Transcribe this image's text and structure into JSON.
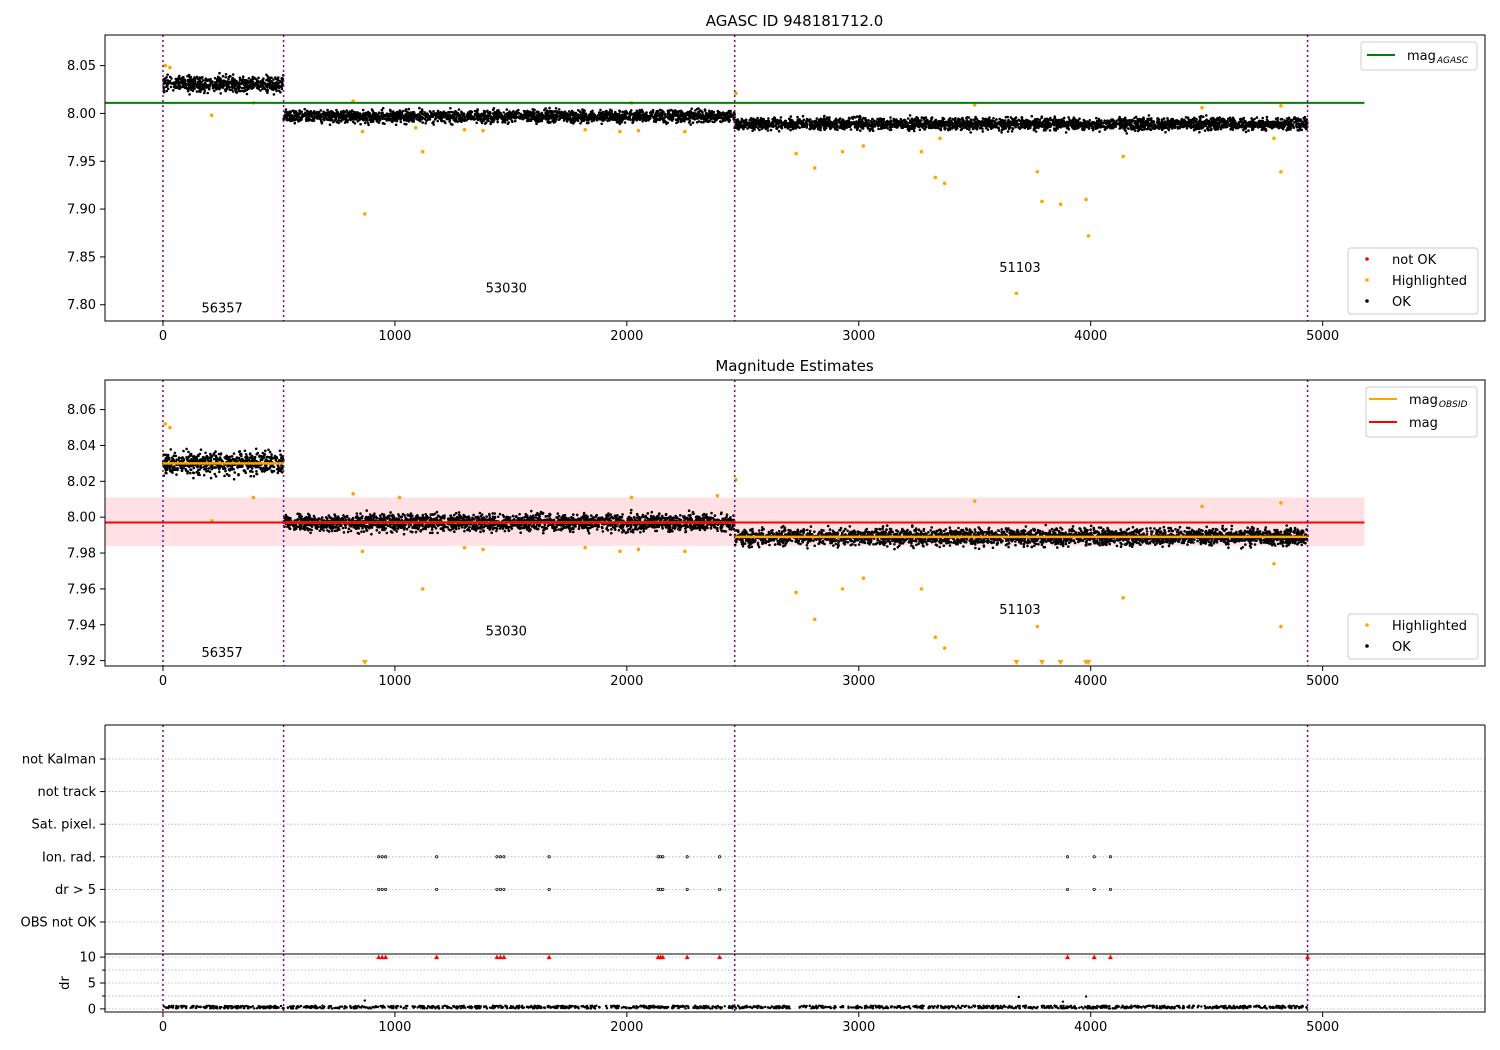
{
  "colors": {
    "ok": "#000000",
    "highlighted": "#ffa500",
    "not_ok": "#ff0000",
    "mag_agasc": "#008000",
    "mag": "#ff0000",
    "mag_obsid": "#ffa500",
    "mag_band": "#ffe0e4",
    "obsid_boundary": "#800080",
    "flag_grid": "#b0b0b0"
  },
  "obsid_boundaries": [
    0,
    520,
    2465,
    4935
  ],
  "chart_data": [
    {
      "id": "agasc",
      "type": "scatter",
      "title": "AGASC ID 948181712.0",
      "xlim": [
        -250,
        5700
      ],
      "ylim": [
        7.783,
        8.082
      ],
      "xticks": [
        0,
        1000,
        2000,
        3000,
        4000,
        5000
      ],
      "yticks": [
        7.8,
        7.85,
        7.9,
        7.95,
        8.0,
        8.05
      ],
      "ytick_labels": [
        "7.80",
        "7.85",
        "7.90",
        "7.95",
        "8.00",
        "8.05"
      ],
      "grid": false,
      "legend_upper": {
        "placement": "upper-right",
        "entries": [
          {
            "label": "mag",
            "sub": "AGASC",
            "color": "#008000",
            "kind": "line"
          }
        ]
      },
      "legend_lower": {
        "placement": "lower-right",
        "entries": [
          {
            "label": "not OK",
            "color": "#ff0000",
            "kind": "marker"
          },
          {
            "label": "Highlighted",
            "color": "#ffa500",
            "kind": "marker"
          },
          {
            "label": "OK",
            "color": "#000000",
            "kind": "marker"
          }
        ]
      },
      "reference_line": {
        "name": "mag AGASC",
        "y": 8.011,
        "x": [
          -250,
          5180
        ]
      },
      "obsid_labels": [
        {
          "text": "56357",
          "x": 255,
          "y": 7.792
        },
        {
          "text": "53030",
          "x": 1480,
          "y": 7.813
        },
        {
          "text": "51103",
          "x": 3695,
          "y": 7.834
        }
      ],
      "ok_segments": [
        {
          "x": [
            0,
            520
          ],
          "mean": 8.031,
          "spread": 0.011
        },
        {
          "x": [
            520,
            2465
          ],
          "mean": 7.997,
          "spread": 0.008
        },
        {
          "x": [
            2465,
            4935
          ],
          "mean": 7.989,
          "spread": 0.008
        }
      ],
      "highlighted_points": [
        [
          10,
          8.05
        ],
        [
          30,
          8.048
        ],
        [
          210,
          7.998
        ],
        [
          390,
          8.011
        ],
        [
          820,
          8.013
        ],
        [
          860,
          7.981
        ],
        [
          870,
          7.895
        ],
        [
          1090,
          7.985
        ],
        [
          1120,
          7.96
        ],
        [
          1300,
          7.983
        ],
        [
          1380,
          7.982
        ],
        [
          1820,
          7.983
        ],
        [
          1970,
          7.981
        ],
        [
          2020,
          8.011
        ],
        [
          2050,
          7.982
        ],
        [
          2250,
          7.981
        ],
        [
          2470,
          8.021
        ],
        [
          2730,
          7.958
        ],
        [
          2810,
          7.943
        ],
        [
          2930,
          7.96
        ],
        [
          3020,
          7.966
        ],
        [
          3270,
          7.96
        ],
        [
          3330,
          7.933
        ],
        [
          3350,
          7.974
        ],
        [
          3370,
          7.927
        ],
        [
          3500,
          8.009
        ],
        [
          3680,
          7.812
        ],
        [
          3770,
          7.939
        ],
        [
          3790,
          7.908
        ],
        [
          3870,
          7.905
        ],
        [
          3980,
          7.91
        ],
        [
          3990,
          7.872
        ],
        [
          4140,
          7.955
        ],
        [
          4480,
          8.006
        ],
        [
          4790,
          7.974
        ],
        [
          4820,
          7.939
        ],
        [
          4820,
          8.008
        ]
      ]
    },
    {
      "id": "estimates",
      "type": "scatter",
      "title": "Magnitude Estimates",
      "xlim": [
        -250,
        5700
      ],
      "ylim": [
        7.917,
        8.0765
      ],
      "xticks": [
        0,
        1000,
        2000,
        3000,
        4000,
        5000
      ],
      "yticks": [
        7.92,
        7.94,
        7.96,
        7.98,
        8.0,
        8.02,
        8.04,
        8.06
      ],
      "ytick_labels": [
        "7.92",
        "7.94",
        "7.96",
        "7.98",
        "8.00",
        "8.02",
        "8.04",
        "8.06"
      ],
      "grid": false,
      "legend_upper": {
        "placement": "upper-right",
        "entries": [
          {
            "label": "mag",
            "sub": "OBSID",
            "color": "#ffa500",
            "kind": "line"
          },
          {
            "label": "mag",
            "sub": "",
            "color": "#ff0000",
            "kind": "line"
          }
        ]
      },
      "legend_lower": {
        "placement": "lower-right",
        "entries": [
          {
            "label": "Highlighted",
            "color": "#ffa500",
            "kind": "marker"
          },
          {
            "label": "OK",
            "color": "#000000",
            "kind": "marker"
          }
        ]
      },
      "mag_line": {
        "y": 7.997,
        "band": [
          7.984,
          8.011
        ],
        "x": [
          -250,
          5180
        ]
      },
      "obsid_mean_lines": [
        {
          "x": [
            0,
            520
          ],
          "y": 8.03
        },
        {
          "x": [
            520,
            2465
          ],
          "y": 7.997
        },
        {
          "x": [
            2465,
            4935
          ],
          "y": 7.989
        }
      ],
      "obsid_labels": [
        {
          "text": "56357",
          "x": 255,
          "y": 7.922
        },
        {
          "text": "53030",
          "x": 1480,
          "y": 7.934
        },
        {
          "text": "51103",
          "x": 3695,
          "y": 7.946
        }
      ],
      "ok_segments": [
        {
          "x": [
            0,
            520
          ],
          "mean": 8.03,
          "spread": 0.008
        },
        {
          "x": [
            520,
            2465
          ],
          "mean": 7.997,
          "spread": 0.006
        },
        {
          "x": [
            2465,
            4935
          ],
          "mean": 7.989,
          "spread": 0.006
        }
      ],
      "highlighted_points": [
        [
          10,
          8.052
        ],
        [
          30,
          8.05
        ],
        [
          210,
          7.998
        ],
        [
          390,
          8.011
        ],
        [
          820,
          8.013
        ],
        [
          860,
          7.981
        ],
        [
          1020,
          8.011
        ],
        [
          1120,
          7.96
        ],
        [
          1300,
          7.983
        ],
        [
          1380,
          7.982
        ],
        [
          1820,
          7.983
        ],
        [
          1970,
          7.981
        ],
        [
          2020,
          8.011
        ],
        [
          2050,
          7.982
        ],
        [
          2250,
          7.981
        ],
        [
          2390,
          8.012
        ],
        [
          2470,
          8.021
        ],
        [
          2730,
          7.958
        ],
        [
          2810,
          7.943
        ],
        [
          2930,
          7.96
        ],
        [
          3020,
          7.966
        ],
        [
          3270,
          7.96
        ],
        [
          3330,
          7.933
        ],
        [
          3370,
          7.927
        ],
        [
          3500,
          8.009
        ],
        [
          3770,
          7.939
        ],
        [
          4140,
          7.955
        ],
        [
          4480,
          8.006
        ],
        [
          4790,
          7.974
        ],
        [
          4820,
          7.939
        ],
        [
          4820,
          8.008
        ]
      ],
      "below_axis_points_x": [
        870,
        3680,
        3790,
        3870,
        3980,
        3990
      ]
    },
    {
      "id": "flags",
      "type": "scatter",
      "xlim": [
        -250,
        5700
      ],
      "categories": [
        "not Kalman",
        "not track",
        "Sat. pixel.",
        "Ion. rad.",
        "dr > 5",
        "OBS not OK"
      ],
      "grid": true,
      "flag_points": {
        "Ion. rad.": [
          930,
          945,
          960,
          1180,
          1440,
          1455,
          1470,
          1665,
          2135,
          2145,
          2155,
          2260,
          2400,
          3900,
          4015,
          4085
        ],
        "dr > 5": [
          930,
          945,
          960,
          1180,
          1440,
          1455,
          1470,
          1665,
          2135,
          2145,
          2155,
          2260,
          2400,
          3900,
          4015,
          4085
        ]
      }
    },
    {
      "id": "dr",
      "type": "scatter",
      "xlim": [
        -250,
        5700
      ],
      "ylim": [
        -0.6,
        10.6
      ],
      "xticks": [
        0,
        1000,
        2000,
        3000,
        4000,
        5000
      ],
      "yticks": [
        0,
        5,
        10
      ],
      "ylabel": "dr",
      "grid": true,
      "baseline_mean": 0.35,
      "outliers": [
        [
          870,
          1.6
        ],
        [
          3690,
          2.3
        ],
        [
          3880,
          1.4
        ],
        [
          3980,
          2.4
        ]
      ],
      "clipped_x": [
        930,
        945,
        960,
        1180,
        1440,
        1455,
        1470,
        1665,
        2135,
        2145,
        2155,
        2260,
        2400,
        3900,
        4015,
        4085,
        4935
      ]
    }
  ]
}
